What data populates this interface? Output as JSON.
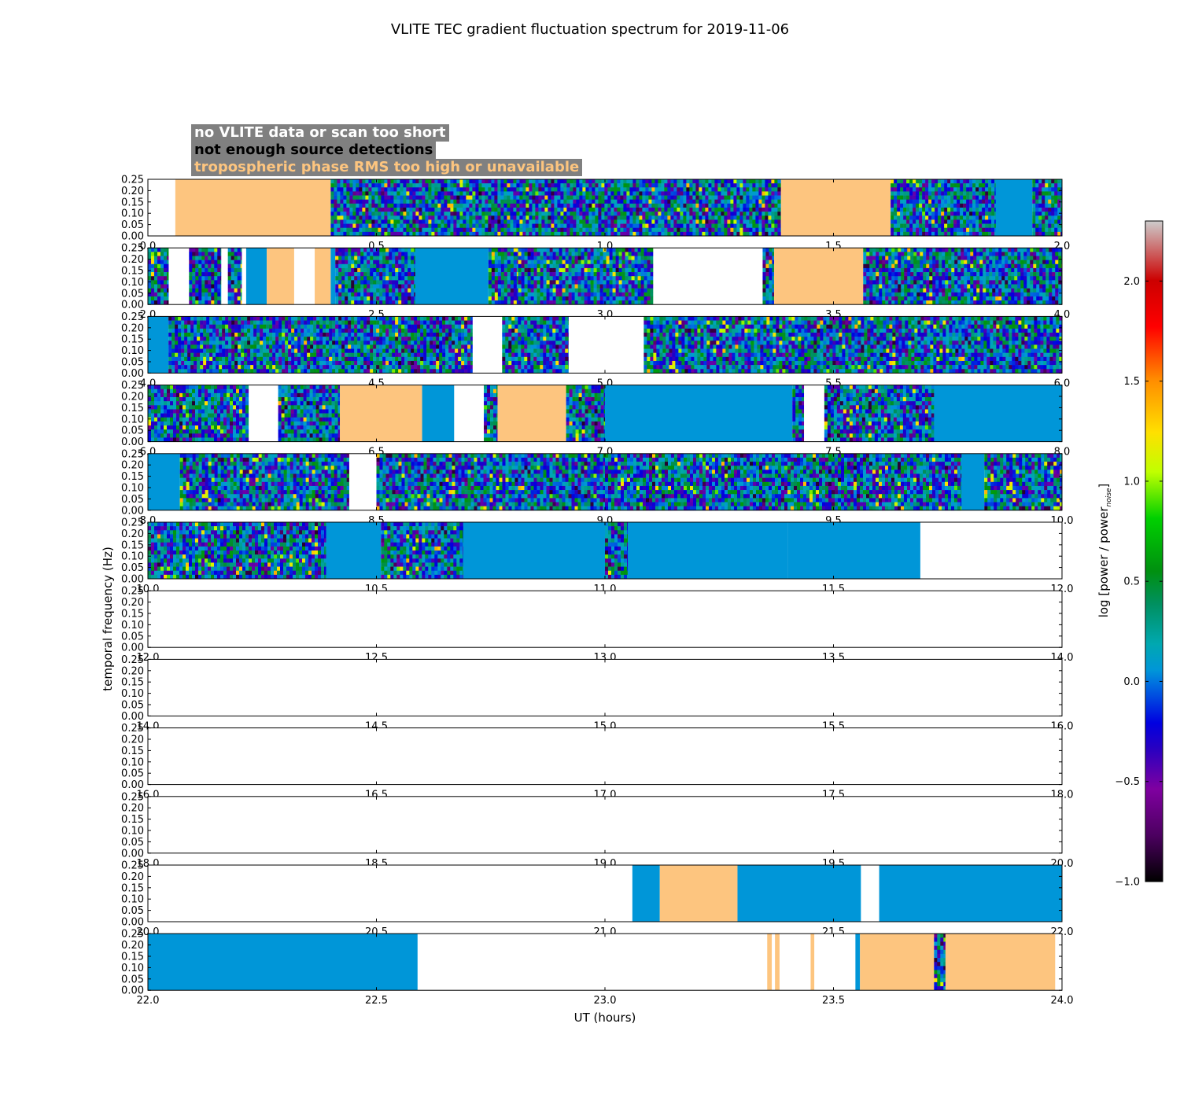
{
  "chart_data": {
    "type": "heatmap",
    "title": "VLITE TEC gradient fluctuation spectrum for 2019-11-06",
    "xlabel": "UT (hours)",
    "ylabel": "temporal frequency (Hz)",
    "ylim": [
      0,
      0.25
    ],
    "y_ticks": [
      "0.00",
      "0.05",
      "0.10",
      "0.15",
      "0.20",
      "0.25"
    ],
    "legend": [
      {
        "label": "no VLITE data or scan too short",
        "color": "#ffffff"
      },
      {
        "label": "not enough source detections",
        "color": "#000000"
      },
      {
        "label": "tropospheric phase RMS too high or unavailable",
        "color": "#fdc57f"
      }
    ],
    "colorbar": {
      "label": "log [power / power",
      "label_sub": "noise",
      "label_end": "]",
      "range": [
        -1.0,
        2.3
      ],
      "ticks": [
        "−1.0",
        "−0.5",
        "0.0",
        "0.5",
        "1.0",
        "1.5",
        "2.0"
      ],
      "tick_values": [
        -1.0,
        -0.5,
        0.0,
        0.5,
        1.0,
        1.5,
        2.0
      ]
    },
    "segment_types": {
      "nodata": "no VLITE data or scan too short",
      "tropo": "tropospheric phase RMS too high or unavailable",
      "flat": "spectrum near noise level (log power ~0)",
      "noisy": "fluctuation spectrum"
    },
    "panels": [
      {
        "range": [
          0,
          2
        ],
        "ticks": [
          "0.0",
          "0.5",
          "1.0",
          "1.5",
          "2.0"
        ],
        "segments": [
          [
            0,
            0.06,
            "nodata"
          ],
          [
            0.06,
            0.4,
            "tropo"
          ],
          [
            0.4,
            1.385,
            "noisy"
          ],
          [
            1.385,
            1.625,
            "tropo"
          ],
          [
            1.625,
            1.855,
            "noisy"
          ],
          [
            1.855,
            1.935,
            "flat"
          ],
          [
            1.935,
            2.0,
            "noisy"
          ]
        ]
      },
      {
        "range": [
          2,
          4
        ],
        "ticks": [
          "2.0",
          "2.5",
          "3.0",
          "3.5",
          "4.0"
        ],
        "segments": [
          [
            2.0,
            2.045,
            "noisy"
          ],
          [
            2.045,
            2.09,
            "nodata"
          ],
          [
            2.09,
            2.16,
            "noisy"
          ],
          [
            2.16,
            2.175,
            "nodata"
          ],
          [
            2.175,
            2.205,
            "noisy"
          ],
          [
            2.205,
            2.215,
            "nodata"
          ],
          [
            2.215,
            2.26,
            "flat"
          ],
          [
            2.26,
            2.32,
            "tropo"
          ],
          [
            2.32,
            2.365,
            "nodata"
          ],
          [
            2.365,
            2.4,
            "tropo"
          ],
          [
            2.4,
            2.41,
            "flat"
          ],
          [
            2.41,
            2.585,
            "noisy"
          ],
          [
            2.585,
            2.745,
            "flat"
          ],
          [
            2.745,
            2.81,
            "noisy"
          ],
          [
            2.81,
            3.105,
            "noisy"
          ],
          [
            3.105,
            3.345,
            "nodata"
          ],
          [
            3.345,
            3.37,
            "noisy"
          ],
          [
            3.37,
            3.565,
            "tropo"
          ],
          [
            3.565,
            4.0,
            "noisy"
          ]
        ]
      },
      {
        "range": [
          4,
          6
        ],
        "ticks": [
          "4.0",
          "4.5",
          "5.0",
          "5.5",
          "6.0"
        ],
        "segments": [
          [
            4.0,
            4.045,
            "flat"
          ],
          [
            4.045,
            4.71,
            "noisy"
          ],
          [
            4.71,
            4.775,
            "nodata"
          ],
          [
            4.775,
            4.92,
            "noisy"
          ],
          [
            4.92,
            5.085,
            "nodata"
          ],
          [
            5.085,
            6.0,
            "noisy"
          ]
        ]
      },
      {
        "range": [
          6,
          8
        ],
        "ticks": [
          "6.0",
          "6.5",
          "7.0",
          "7.5",
          "8.0"
        ],
        "segments": [
          [
            6.0,
            6.22,
            "noisy"
          ],
          [
            6.22,
            6.285,
            "nodata"
          ],
          [
            6.285,
            6.42,
            "noisy"
          ],
          [
            6.42,
            6.6,
            "tropo"
          ],
          [
            6.6,
            6.67,
            "flat"
          ],
          [
            6.67,
            6.735,
            "nodata"
          ],
          [
            6.735,
            6.765,
            "noisy"
          ],
          [
            6.765,
            6.915,
            "tropo"
          ],
          [
            6.915,
            7.0,
            "noisy"
          ],
          [
            7.0,
            7.41,
            "flat"
          ],
          [
            7.41,
            7.435,
            "noisy"
          ],
          [
            7.435,
            7.48,
            "nodata"
          ],
          [
            7.48,
            7.72,
            "noisy"
          ],
          [
            7.72,
            8.0,
            "flat"
          ]
        ]
      },
      {
        "range": [
          8,
          10
        ],
        "ticks": [
          "8.0",
          "8.5",
          "9.0",
          "9.5",
          "10.0"
        ],
        "segments": [
          [
            8.0,
            8.07,
            "flat"
          ],
          [
            8.07,
            8.44,
            "noisy"
          ],
          [
            8.44,
            8.5,
            "nodata"
          ],
          [
            8.5,
            9.0,
            "noisy"
          ],
          [
            9.0,
            9.78,
            "noisy"
          ],
          [
            9.78,
            9.83,
            "flat"
          ],
          [
            9.83,
            10.0,
            "noisy"
          ]
        ]
      },
      {
        "range": [
          10,
          12
        ],
        "ticks": [
          "10.0",
          "10.5",
          "11.0",
          "11.5",
          "12.0"
        ],
        "segments": [
          [
            10.0,
            10.39,
            "noisy"
          ],
          [
            10.39,
            10.51,
            "flat"
          ],
          [
            10.51,
            10.69,
            "noisy"
          ],
          [
            10.69,
            11.0,
            "flat"
          ],
          [
            11.0,
            11.05,
            "noisy"
          ],
          [
            11.05,
            11.4,
            "flat"
          ],
          [
            11.4,
            11.69,
            "flat"
          ],
          [
            11.69,
            12.0,
            "nodata"
          ]
        ]
      },
      {
        "range": [
          12,
          14
        ],
        "ticks": [
          "12.0",
          "12.5",
          "13.0",
          "13.5",
          "14.0"
        ],
        "segments": [
          [
            12.0,
            14.0,
            "nodata"
          ]
        ]
      },
      {
        "range": [
          14,
          16
        ],
        "ticks": [
          "14.0",
          "14.5",
          "15.0",
          "15.5",
          "16.0"
        ],
        "segments": [
          [
            14.0,
            16.0,
            "nodata"
          ]
        ]
      },
      {
        "range": [
          16,
          18
        ],
        "ticks": [
          "16.0",
          "16.5",
          "17.0",
          "17.5",
          "18.0"
        ],
        "segments": [
          [
            16.0,
            18.0,
            "nodata"
          ]
        ]
      },
      {
        "range": [
          18,
          20
        ],
        "ticks": [
          "18.0",
          "18.5",
          "19.0",
          "19.5",
          "20.0"
        ],
        "segments": [
          [
            18.0,
            20.0,
            "nodata"
          ]
        ]
      },
      {
        "range": [
          20,
          22
        ],
        "ticks": [
          "20.0",
          "20.5",
          "21.0",
          "21.5",
          "22.0"
        ],
        "segments": [
          [
            20.0,
            21.06,
            "nodata"
          ],
          [
            21.06,
            21.12,
            "flat"
          ],
          [
            21.12,
            21.29,
            "tropo"
          ],
          [
            21.29,
            21.56,
            "flat"
          ],
          [
            21.56,
            21.6,
            "nodata"
          ],
          [
            21.6,
            22.0,
            "flat"
          ]
        ]
      },
      {
        "range": [
          22,
          24
        ],
        "ticks": [
          "22.0",
          "22.5",
          "23.0",
          "23.5",
          "24.0"
        ],
        "segments": [
          [
            22.0,
            22.59,
            "flat"
          ],
          [
            22.59,
            23.355,
            "nodata"
          ],
          [
            23.355,
            23.365,
            "tropo"
          ],
          [
            23.365,
            23.372,
            "nodata"
          ],
          [
            23.372,
            23.382,
            "tropo"
          ],
          [
            23.382,
            23.45,
            "nodata"
          ],
          [
            23.45,
            23.458,
            "tropo"
          ],
          [
            23.458,
            23.548,
            "nodata"
          ],
          [
            23.548,
            23.558,
            "flat"
          ],
          [
            23.558,
            23.72,
            "tropo"
          ],
          [
            23.72,
            23.745,
            "noisy"
          ],
          [
            23.745,
            23.985,
            "tropo"
          ],
          [
            23.985,
            24.0,
            "nodata"
          ]
        ]
      }
    ]
  }
}
